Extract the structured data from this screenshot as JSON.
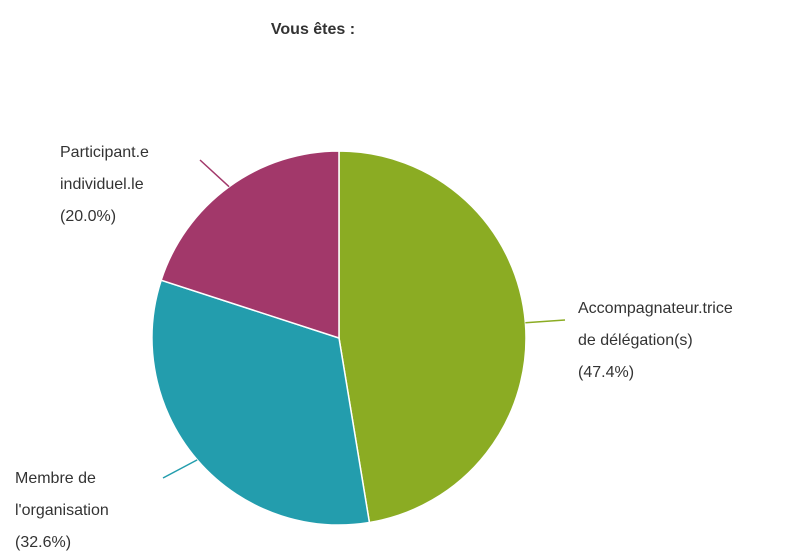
{
  "chart_data": {
    "type": "pie",
    "title": "Vous êtes :",
    "categories": [
      "Accompagnateur.trice de délégation(s)",
      "Membre de l'organisation",
      "Participant.e individuel.le"
    ],
    "values": [
      47.4,
      32.6,
      20.0
    ],
    "value_labels": [
      "(47.4%)",
      "(32.6%)",
      "(20.0%)"
    ],
    "colors": [
      "#8bac23",
      "#239dad",
      "#a2386a"
    ]
  }
}
